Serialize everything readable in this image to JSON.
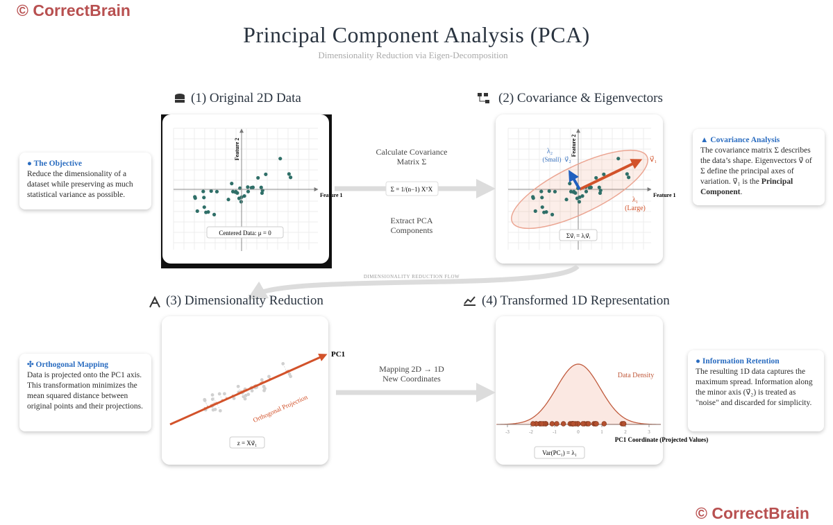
{
  "watermarks": [
    "© CorrectBrain",
    "© CorrectBrain"
  ],
  "header": {
    "title": "Principal Component Analysis (PCA)",
    "subtitle": "Dimensionality Reduction via Eigen-Decomposition"
  },
  "panels": [
    {
      "title": "(1) Original 2D Data",
      "x_label": "Feature 1",
      "y_label": "Feature 2",
      "caption": "Centered Data: μ = 0"
    },
    {
      "title": "(2) Covariance & Eigenvectors",
      "x_label": "Feature 1",
      "y_label": "Feature 2",
      "caption": "Σv⃗ᵢ = λᵢv⃗ᵢ",
      "minor_label": [
        "λ₂",
        "(Small)"
      ],
      "minor_vector": "v⃗₂",
      "major_vector": "v⃗₁",
      "major_label": [
        "λ₁",
        "(Large)"
      ]
    },
    {
      "title": "(3) Dimensionality Reduction",
      "axis_label": "PC1",
      "annotation": "Orthogonal Projection",
      "caption": "z = Xv⃗₁"
    },
    {
      "title": "(4) Transformed 1D Representation",
      "x_label": "PC1 Coordinate (Projected Values)",
      "annotation": "Data Density",
      "caption": "Var(PC₁) = λ₁",
      "xticks": [
        -3,
        -2,
        -1,
        0,
        1,
        2,
        3
      ]
    }
  ],
  "connectors": [
    {
      "above": [
        "Calculate Covariance",
        "Matrix Σ"
      ],
      "formula": "Σ = 1/(n−1) XᵀX",
      "below": [
        "Extract PCA",
        "Components"
      ]
    },
    {
      "label": "DIMENSIONALITY REDUCTION FLOW"
    },
    {
      "above": [
        "Mapping 2D → 1D",
        "New Coordinates"
      ]
    }
  ],
  "notes": [
    {
      "title": "The Objective",
      "text": "Reduce the dimensionality of a dataset while preserving as much statistical variance as possible."
    },
    {
      "title": "Covariance Analysis",
      "text": "The covariance matrix Σ describes the data’s shape. Eigenvectors v⃗ of Σ define the principal axes of variation. v⃗₁ is the ",
      "emphasis": "Principal Component",
      "end": "."
    },
    {
      "title": "Orthogonal Mapping",
      "text": "Data is projected onto the PC1 axis. This transformation minimizes the mean squared distance between original points and their projections."
    },
    {
      "title": "Information Retention",
      "text": "The resulting 1D data captures the maximum spread. Information along the minor axis (v⃗₂) is treated as \"noise\" and discarded for simplicity."
    }
  ]
}
